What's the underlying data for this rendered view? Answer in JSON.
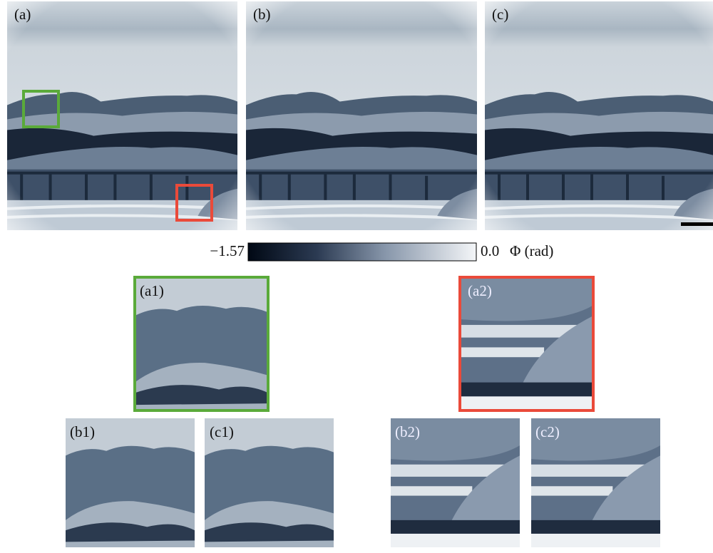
{
  "panels": [
    "(a)",
    "(b)",
    "(c)"
  ],
  "insets_green": [
    "(a1)",
    "(b1)",
    "(c1)"
  ],
  "insets_red": [
    "(a2)",
    "(b2)",
    "(c2)"
  ],
  "colorbar": {
    "min": {
      "value": -1.57,
      "label": "−1.57"
    },
    "max": {
      "value": 0,
      "label": "0.0"
    },
    "label": "Φ (rad)"
  }
}
